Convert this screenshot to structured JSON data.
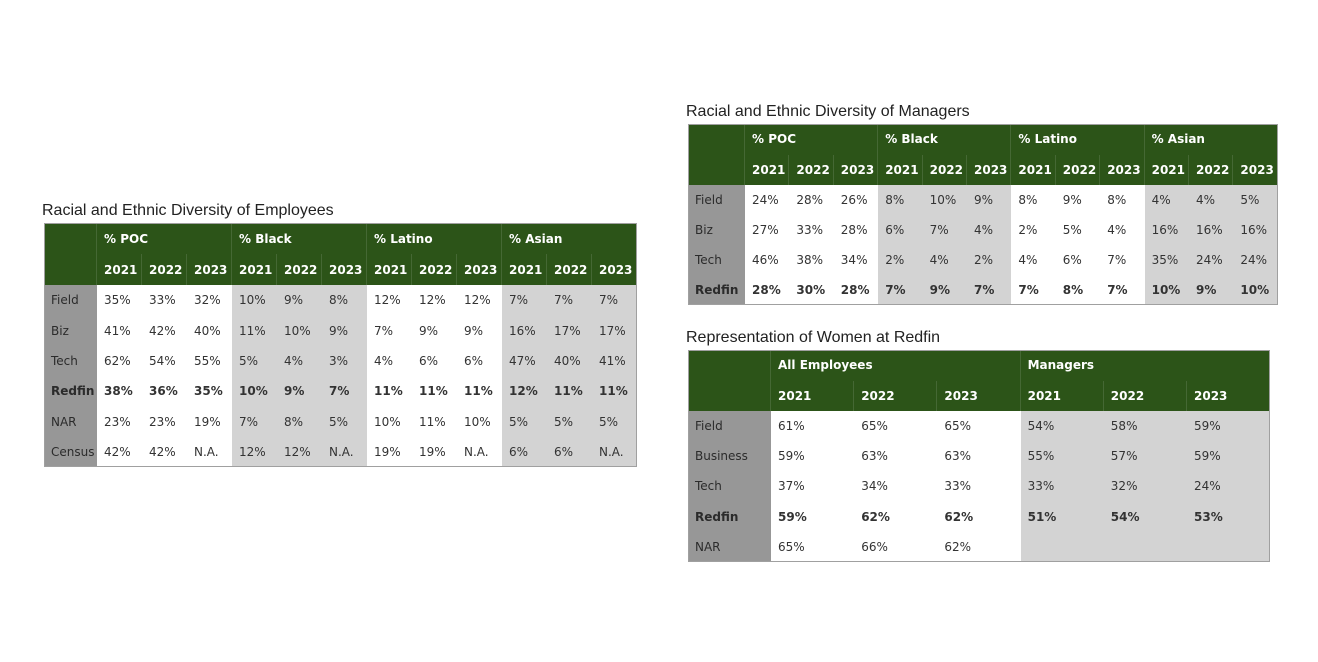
{
  "tables": [
    {
      "title": "Racial and Ethnic Diversity of Employees",
      "groups": [
        {
          "name": "% POC",
          "fill": "#ffffff",
          "years": [
            "2021",
            "2022",
            "2023"
          ]
        },
        {
          "name": "% Black",
          "fill": "#d3d3d3",
          "years": [
            "2021",
            "2022",
            "2023"
          ]
        },
        {
          "name": "% Latino",
          "fill": "#ffffff",
          "years": [
            "2021",
            "2022",
            "2023"
          ]
        },
        {
          "name": "% Asian",
          "fill": "#d3d3d3",
          "years": [
            "2021",
            "2022",
            "2023"
          ]
        }
      ],
      "rows": [
        {
          "label": "Field",
          "cells": [
            "35%",
            "33%",
            "32%",
            "10%",
            "9%",
            "8%",
            "12%",
            "12%",
            "12%",
            "7%",
            "7%",
            "7%"
          ]
        },
        {
          "label": "Biz",
          "cells": [
            "41%",
            "42%",
            "40%",
            "11%",
            "10%",
            "9%",
            "7%",
            "9%",
            "9%",
            "16%",
            "17%",
            "17%"
          ]
        },
        {
          "label": "Tech",
          "cells": [
            "62%",
            "54%",
            "55%",
            "5%",
            "4%",
            "3%",
            "4%",
            "6%",
            "6%",
            "47%",
            "40%",
            "41%"
          ]
        },
        {
          "label": "Redfin",
          "bold": true,
          "cells": [
            "38%",
            "36%",
            "35%",
            "10%",
            "9%",
            "7%",
            "11%",
            "11%",
            "11%",
            "12%",
            "11%",
            "11%"
          ]
        },
        {
          "label": "NAR",
          "cells": [
            "23%",
            "23%",
            "19%",
            "7%",
            "8%",
            "5%",
            "10%",
            "11%",
            "10%",
            "5%",
            "5%",
            "5%"
          ]
        },
        {
          "label": "Census",
          "cells": [
            "42%",
            "42%",
            "N.A.",
            "12%",
            "12%",
            "N.A.",
            "19%",
            "19%",
            "N.A.",
            "6%",
            "6%",
            "N.A."
          ]
        }
      ]
    },
    {
      "title": "Racial and Ethnic Diversity of Managers",
      "groups": [
        {
          "name": "% POC",
          "fill": "#ffffff",
          "years": [
            "2021",
            "2022",
            "2023"
          ]
        },
        {
          "name": "% Black",
          "fill": "#d3d3d3",
          "years": [
            "2021",
            "2022",
            "2023"
          ]
        },
        {
          "name": "% Latino",
          "fill": "#ffffff",
          "years": [
            "2021",
            "2022",
            "2023"
          ]
        },
        {
          "name": "% Asian",
          "fill": "#d3d3d3",
          "years": [
            "2021",
            "2022",
            "2023"
          ]
        }
      ],
      "rows": [
        {
          "label": "Field",
          "cells": [
            "24%",
            "28%",
            "26%",
            "8%",
            "10%",
            "9%",
            "8%",
            "9%",
            "8%",
            "4%",
            "4%",
            "5%"
          ]
        },
        {
          "label": "Biz",
          "cells": [
            "27%",
            "33%",
            "28%",
            "6%",
            "7%",
            "4%",
            "2%",
            "5%",
            "4%",
            "16%",
            "16%",
            "16%"
          ]
        },
        {
          "label": "Tech",
          "cells": [
            "46%",
            "38%",
            "34%",
            "2%",
            "4%",
            "2%",
            "4%",
            "6%",
            "7%",
            "35%",
            "24%",
            "24%"
          ]
        },
        {
          "label": "Redfin",
          "bold": true,
          "cells": [
            "28%",
            "30%",
            "28%",
            "7%",
            "9%",
            "7%",
            "7%",
            "8%",
            "7%",
            "10%",
            "9%",
            "10%"
          ]
        }
      ]
    },
    {
      "title": "Representation of Women at Redfin",
      "groups": [
        {
          "name": "All Employees",
          "fill": "#ffffff",
          "years": [
            "2021",
            "2022",
            "2023"
          ]
        },
        {
          "name": "Managers",
          "fill": "#d3d3d3",
          "years": [
            "2021",
            "2022",
            "2023"
          ]
        }
      ],
      "rows": [
        {
          "label": "Field",
          "cells": [
            "61%",
            "65%",
            "65%",
            "54%",
            "58%",
            "59%"
          ]
        },
        {
          "label": "Business",
          "cells": [
            "59%",
            "63%",
            "63%",
            "55%",
            "57%",
            "59%"
          ]
        },
        {
          "label": "Tech",
          "cells": [
            "37%",
            "34%",
            "33%",
            "33%",
            "32%",
            "24%"
          ]
        },
        {
          "label": "Redfin",
          "bold": true,
          "cells": [
            "59%",
            "62%",
            "62%",
            "51%",
            "54%",
            "53%"
          ]
        },
        {
          "label": "NAR",
          "cells": [
            "65%",
            "66%",
            "62%"
          ]
        }
      ]
    }
  ]
}
